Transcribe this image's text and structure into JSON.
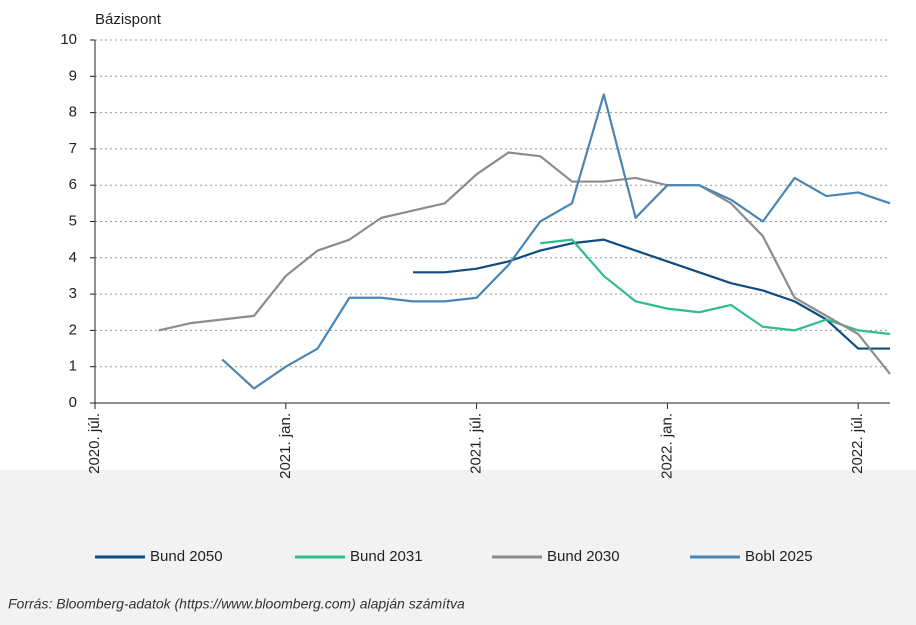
{
  "chart_data": {
    "type": "line",
    "ylabel": "Bázispont",
    "source": "Forrás: Bloomberg-adatok (https://www.bloomberg.com) alapján számítva",
    "x": [
      "2020-09",
      "2020-10",
      "2020-11",
      "2020-12",
      "2021-01",
      "2021-02",
      "2021-03",
      "2021-04",
      "2021-05",
      "2021-06",
      "2021-07",
      "2021-08",
      "2021-09",
      "2021-10",
      "2021-11",
      "2021-12",
      "2022-01",
      "2022-02",
      "2022-03",
      "2022-04",
      "2022-05",
      "2022-06",
      "2022-07",
      "2022-08"
    ],
    "series": [
      {
        "name": "Bund 2050",
        "color": "#0f4c81",
        "values": [
          null,
          null,
          null,
          null,
          null,
          null,
          null,
          null,
          3.6,
          3.6,
          3.7,
          3.9,
          4.2,
          4.4,
          4.5,
          4.2,
          3.9,
          3.6,
          3.3,
          3.1,
          2.8,
          2.3,
          1.5,
          1.5
        ]
      },
      {
        "name": "Bund 2031",
        "color": "#2dbe8c",
        "values": [
          null,
          null,
          null,
          null,
          null,
          null,
          null,
          null,
          null,
          null,
          null,
          null,
          4.4,
          4.5,
          3.5,
          2.8,
          2.6,
          2.5,
          2.7,
          2.1,
          2.0,
          2.3,
          2.0,
          1.9
        ]
      },
      {
        "name": "Bund 2030",
        "color": "#8c8c8c",
        "values": [
          2.0,
          2.2,
          2.3,
          2.4,
          3.5,
          4.2,
          4.5,
          5.1,
          5.3,
          5.5,
          6.3,
          6.9,
          6.8,
          6.1,
          6.1,
          6.2,
          6.0,
          6.0,
          5.5,
          4.6,
          2.9,
          2.4,
          1.9,
          0.8
        ]
      },
      {
        "name": "Bobl 2025",
        "color": "#4a86b5",
        "values": [
          null,
          null,
          1.2,
          0.4,
          1.0,
          1.5,
          2.9,
          2.9,
          2.8,
          2.8,
          2.9,
          3.8,
          5.0,
          5.5,
          8.5,
          5.1,
          6.0,
          6.0,
          5.6,
          5.0,
          6.2,
          5.7,
          5.8,
          5.5
        ]
      }
    ],
    "xlim": [
      "2020-07",
      "2022-08"
    ],
    "xticks": [
      {
        "value": "2020-07",
        "label": "2020. júl."
      },
      {
        "value": "2021-01",
        "label": "2021. jan."
      },
      {
        "value": "2021-07",
        "label": "2021. júl."
      },
      {
        "value": "2022-01",
        "label": "2022. jan."
      },
      {
        "value": "2022-07",
        "label": "2022. júl."
      }
    ],
    "ylim": [
      0,
      10
    ],
    "yticks": [
      0,
      1,
      2,
      3,
      4,
      5,
      6,
      7,
      8,
      9,
      10
    ],
    "grid": true,
    "legend": "bottom"
  }
}
